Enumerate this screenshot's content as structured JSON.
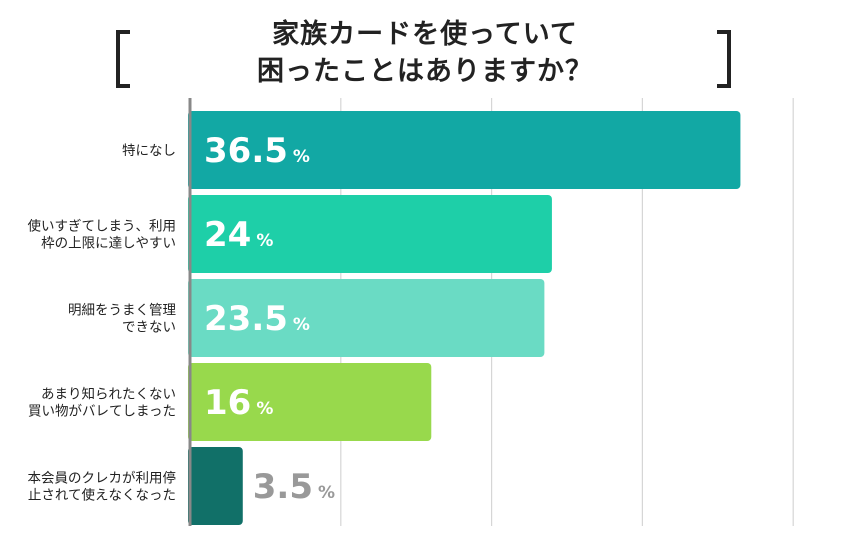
{
  "title": {
    "line1": "家族カードを使っていて",
    "line2": "困ったことはありますか？"
  },
  "chart_data": {
    "type": "bar",
    "orientation": "horizontal",
    "title": "家族カードを使っていて困ったことはありますか？",
    "xlim": [
      0,
      40
    ],
    "grid": true,
    "unit": "%",
    "categories": [
      [
        "特になし"
      ],
      [
        "使いすぎてしまう、利用",
        "枠の上限に達しやすい"
      ],
      [
        "明細をうまく管理",
        "できない"
      ],
      [
        "あまり知られたくない",
        "買い物がバレてしまった"
      ],
      [
        "本会員のクレカが利用停",
        "止されて使えなくなった"
      ]
    ],
    "values": [
      36.5,
      24,
      23.5,
      16,
      3.5
    ],
    "value_labels": [
      "36.5",
      "24",
      "23.5",
      "16",
      "3.5"
    ],
    "colors": [
      "#12a8a4",
      "#1ecfa8",
      "#6adbc4",
      "#98d94c",
      "#117068"
    ],
    "value_color_inside": "#ffffff",
    "value_color_outside": "#999999"
  }
}
